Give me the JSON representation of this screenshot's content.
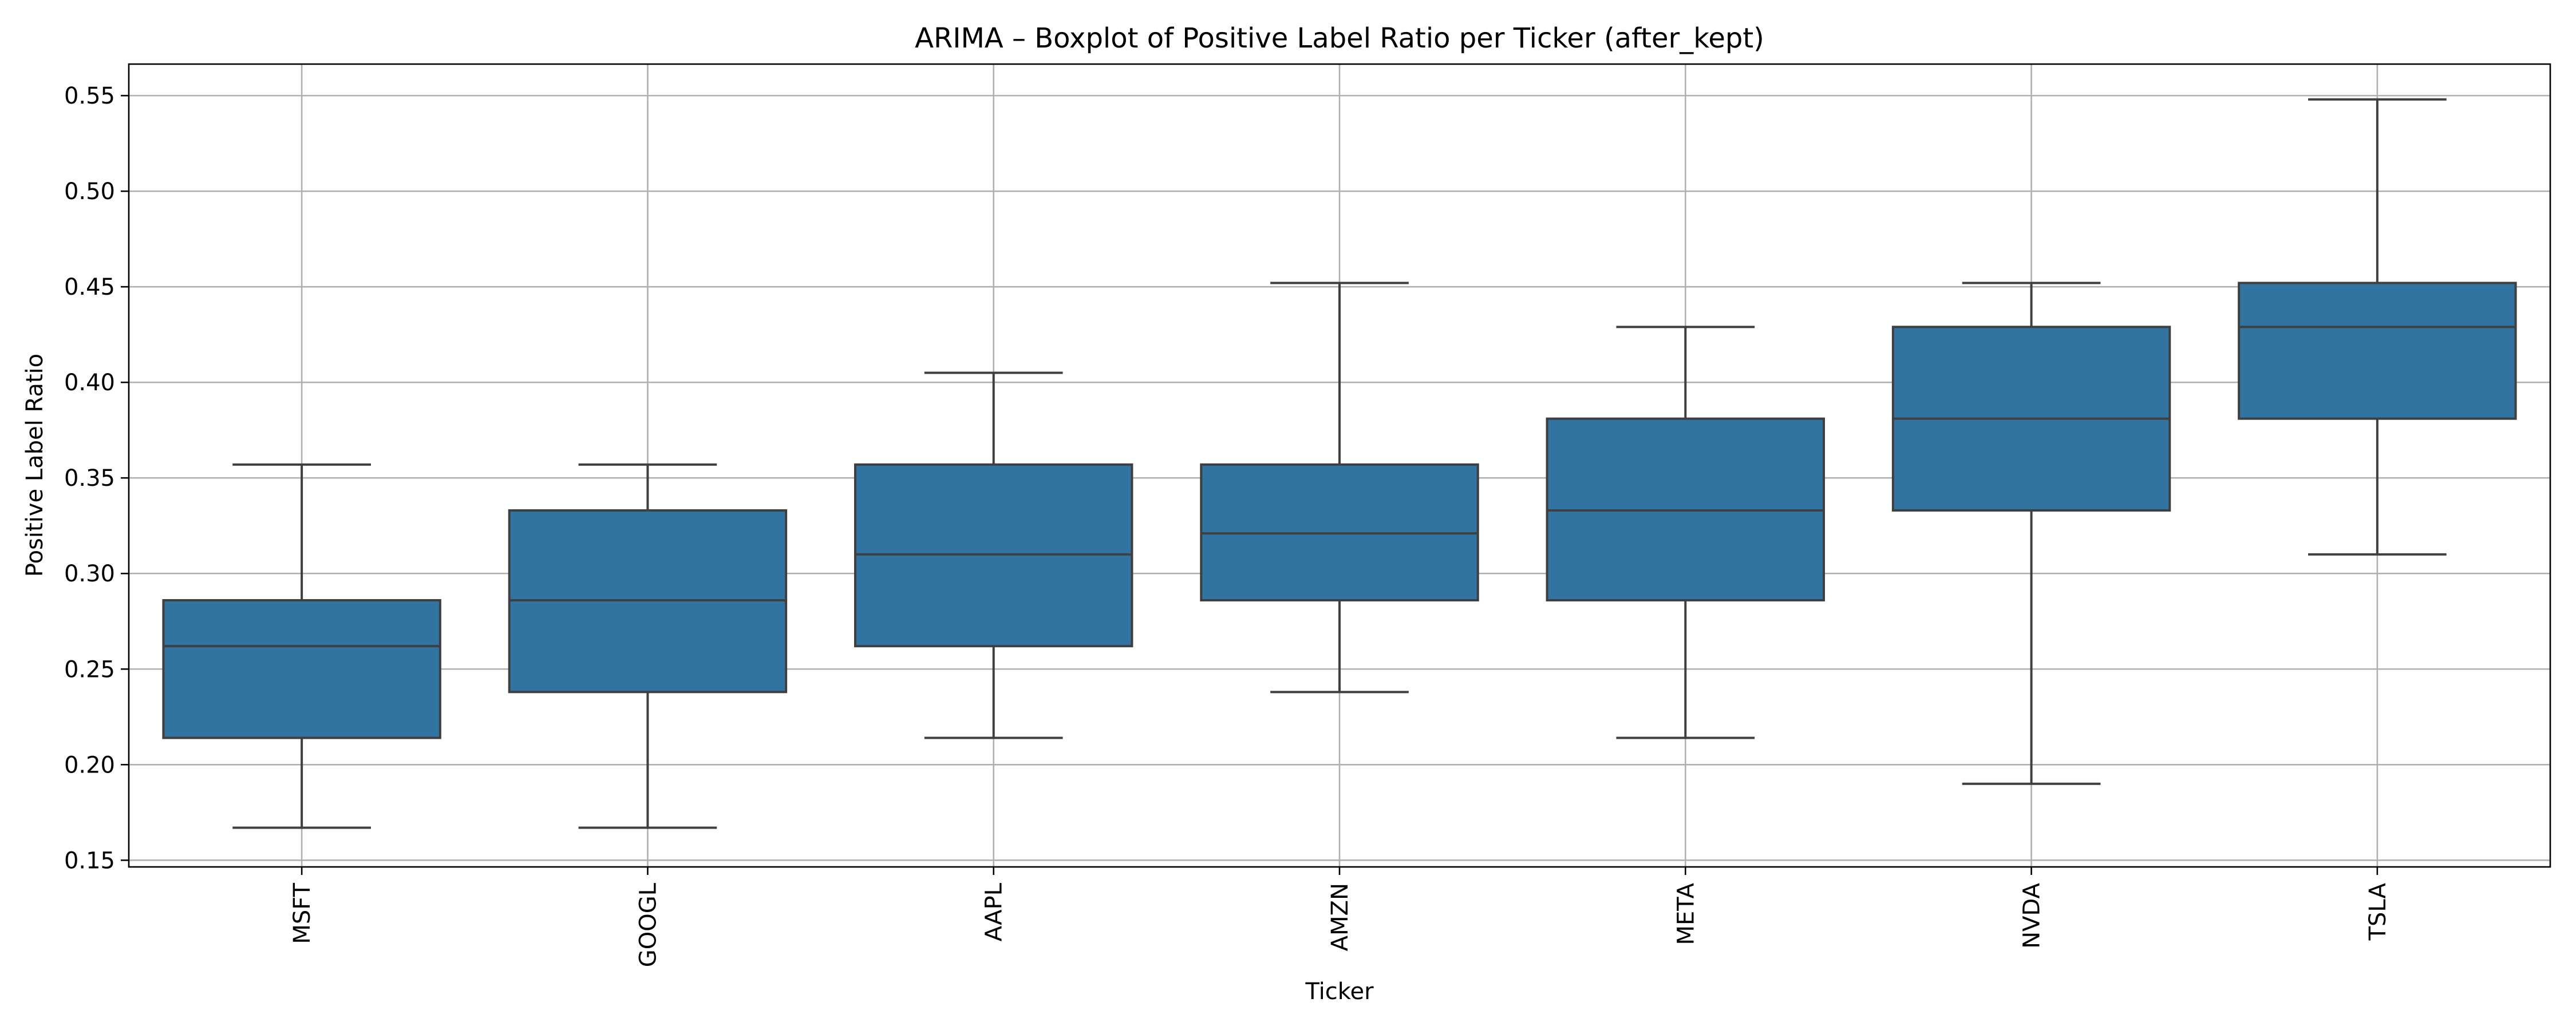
{
  "chart_data": {
    "type": "boxplot",
    "title": "ARIMA – Boxplot of Positive Label Ratio per Ticker (after_kept)",
    "xlabel": "Ticker",
    "ylabel": "Positive Label Ratio",
    "categories": [
      "MSFT",
      "GOOGL",
      "AAPL",
      "AMZN",
      "META",
      "NVDA",
      "TSLA"
    ],
    "boxes": [
      {
        "category": "MSFT",
        "whisker_low": 0.167,
        "q1": 0.214,
        "median": 0.262,
        "q3": 0.286,
        "whisker_high": 0.357
      },
      {
        "category": "GOOGL",
        "whisker_low": 0.167,
        "q1": 0.238,
        "median": 0.286,
        "q3": 0.333,
        "whisker_high": 0.357
      },
      {
        "category": "AAPL",
        "whisker_low": 0.214,
        "q1": 0.262,
        "median": 0.31,
        "q3": 0.357,
        "whisker_high": 0.405
      },
      {
        "category": "AMZN",
        "whisker_low": 0.238,
        "q1": 0.286,
        "median": 0.321,
        "q3": 0.357,
        "whisker_high": 0.452
      },
      {
        "category": "META",
        "whisker_low": 0.214,
        "q1": 0.286,
        "median": 0.333,
        "q3": 0.381,
        "whisker_high": 0.429
      },
      {
        "category": "NVDA",
        "whisker_low": 0.19,
        "q1": 0.333,
        "median": 0.381,
        "q3": 0.429,
        "whisker_high": 0.452
      },
      {
        "category": "TSLA",
        "whisker_low": 0.31,
        "q1": 0.381,
        "median": 0.429,
        "q3": 0.452,
        "whisker_high": 0.548
      }
    ],
    "ylim": [
      0.1465,
      0.5665
    ],
    "yticks": [
      0.15,
      0.2,
      0.25,
      0.3,
      0.35,
      0.4,
      0.45,
      0.5,
      0.55
    ],
    "ytick_labels": [
      "0.15",
      "0.20",
      "0.25",
      "0.30",
      "0.35",
      "0.40",
      "0.45",
      "0.50",
      "0.55"
    ],
    "grid": true,
    "xtick_rotation": "vertical",
    "colors": {
      "box_fill": "#3274a1",
      "box_edge": "#3f3f3f",
      "grid": "#b0b0b0"
    }
  }
}
